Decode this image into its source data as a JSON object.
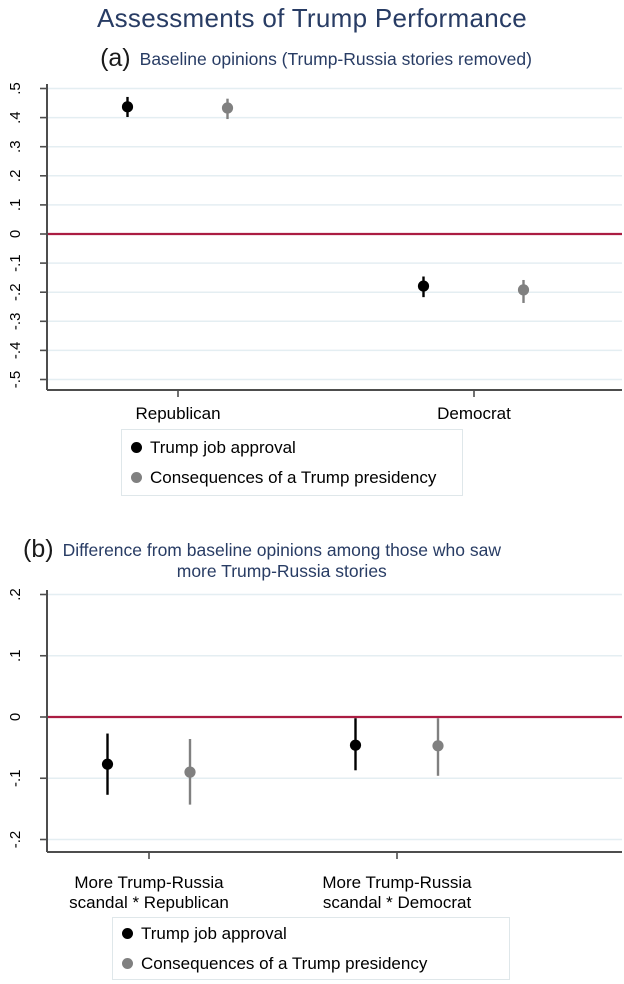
{
  "page": {
    "title": "Assessments of Trump Performance"
  },
  "colors": {
    "title_navy": "#283c64",
    "zero_line_red": "#ab1c42",
    "gridline": "#e4eef2",
    "axis_gray": "#4d4d4d",
    "series_black": "#000000",
    "series_gray": "#808080",
    "legend_border": "#dfe7ea"
  },
  "legend": {
    "items": [
      {
        "label": "Trump job approval",
        "color": "#000000"
      },
      {
        "label": "Consequences of a Trump presidency",
        "color": "#808080"
      }
    ]
  },
  "chart_data": [
    {
      "id": "panel_a",
      "type": "scatter",
      "panel_label": "(a)",
      "subtitle": "Baseline opinions (Trump-Russia stories removed)",
      "categories": [
        "Republican",
        "Democrat"
      ],
      "series": [
        {
          "name": "Trump job approval",
          "color": "#000000",
          "points": [
            {
              "est": 0.437,
              "lo": 0.402,
              "hi": 0.471
            },
            {
              "est": -0.179,
              "lo": -0.217,
              "hi": -0.146
            }
          ]
        },
        {
          "name": "Consequences of a Trump presidency",
          "color": "#808080",
          "points": [
            {
              "est": 0.433,
              "lo": 0.395,
              "hi": 0.465
            },
            {
              "est": -0.192,
              "lo": -0.237,
              "hi": -0.158
            }
          ]
        }
      ],
      "yticks": [
        {
          "v": 0.5,
          "label": ".5"
        },
        {
          "v": 0.4,
          "label": ".4"
        },
        {
          "v": 0.3,
          "label": ".3"
        },
        {
          "v": 0.2,
          "label": ".2"
        },
        {
          "v": 0.1,
          "label": ".1"
        },
        {
          "v": 0,
          "label": "0"
        },
        {
          "v": -0.1,
          "label": "-.1"
        },
        {
          "v": -0.2,
          "label": "-.2"
        },
        {
          "v": -0.3,
          "label": "-.3"
        },
        {
          "v": -0.4,
          "label": "-.4"
        },
        {
          "v": -0.5,
          "label": "-.5"
        }
      ],
      "ylim": [
        -0.5,
        0.5
      ],
      "zero_line": true,
      "grid": true,
      "legend_position": "bottom"
    },
    {
      "id": "panel_b",
      "type": "scatter",
      "panel_label": "(b)",
      "subtitle": "Difference from baseline opinions among those who saw\nmore Trump-Russia stories",
      "categories": [
        "More Trump-Russia\nscandal * Republican",
        "More Trump-Russia\nscandal * Democrat"
      ],
      "series": [
        {
          "name": "Trump job approval",
          "color": "#000000",
          "points": [
            {
              "est": -0.077,
              "lo": -0.127,
              "hi": -0.027
            },
            {
              "est": -0.046,
              "lo": -0.087,
              "hi": -0.002
            }
          ]
        },
        {
          "name": "Consequences of a Trump presidency",
          "color": "#808080",
          "points": [
            {
              "est": -0.09,
              "lo": -0.143,
              "hi": -0.036
            },
            {
              "est": -0.047,
              "lo": -0.096,
              "hi": -0.002
            }
          ]
        }
      ],
      "yticks": [
        {
          "v": 0.2,
          "label": ".2"
        },
        {
          "v": 0.1,
          "label": ".1"
        },
        {
          "v": 0,
          "label": "0"
        },
        {
          "v": -0.1,
          "label": "-.1"
        },
        {
          "v": -0.2,
          "label": "-.2"
        }
      ],
      "ylim": [
        -0.2,
        0.2
      ],
      "zero_line": true,
      "grid": true,
      "legend_position": "bottom"
    }
  ]
}
